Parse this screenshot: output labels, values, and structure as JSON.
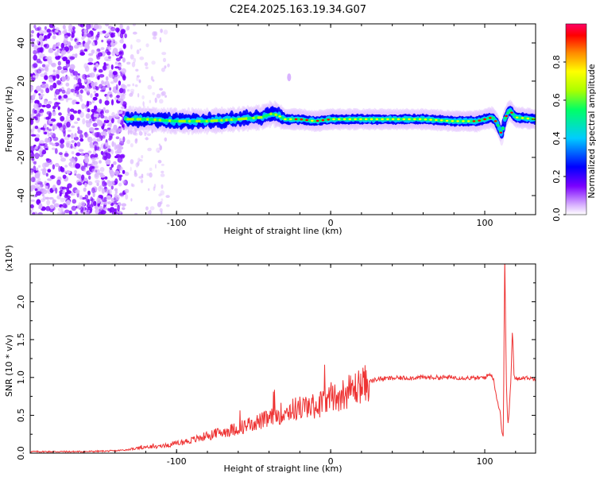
{
  "title": "C2E4.2025.163.19.34.G07",
  "chart_data": [
    {
      "type": "heatmap",
      "xlabel": "Height of straight line (km)",
      "ylabel": "Frequency (Hz)",
      "xlim": [
        -195,
        133
      ],
      "ylim": [
        -50,
        50
      ],
      "xticks": [
        -100,
        0,
        100
      ],
      "xtick_labels": [
        "-100",
        "0",
        "100"
      ],
      "yticks": [
        -40,
        -20,
        0,
        20,
        40
      ],
      "ytick_labels": [
        "-40",
        "-20",
        "0",
        "20",
        "40"
      ],
      "colorbar": {
        "label": "Normalized spectral amplitude",
        "range": [
          0,
          1
        ],
        "ticks": [
          0.0,
          0.2,
          0.4,
          0.6,
          0.8
        ],
        "tick_labels": [
          "0.0",
          "0.2",
          "0.4",
          "0.6",
          "0.8"
        ],
        "colors": [
          "#ffffff",
          "#d9b3ff",
          "#7b00ff",
          "#0000ff",
          "#00ccff",
          "#00ff66",
          "#aaff00",
          "#ffff00",
          "#ff8800",
          "#ff0000",
          "#ff0066"
        ]
      },
      "noise_region_x": [
        -195,
        -133
      ],
      "sparse_region_x": [
        -133,
        -105
      ],
      "ridge": {
        "x": [
          -133,
          -120,
          -100,
          -80,
          -60,
          -45,
          -38,
          -34,
          -30,
          -20,
          -10,
          0,
          20,
          40,
          60,
          80,
          95,
          100,
          105,
          108,
          111,
          113,
          116,
          120,
          133
        ],
        "y": [
          0,
          0,
          -1,
          -1,
          0,
          1,
          3,
          2,
          0,
          0,
          -1,
          0,
          0,
          0,
          0,
          -1,
          -1,
          0,
          1,
          -2,
          -8,
          0,
          5,
          1,
          0
        ]
      },
      "isolated_blob": {
        "x": -27,
        "y": 22
      }
    },
    {
      "type": "line",
      "xlabel": "Height of straight line (km)",
      "ylabel": "SNR (10 * v/v)",
      "y_multiplier": "(x10⁴)",
      "xlim": [
        -195,
        133
      ],
      "ylim": [
        0,
        2.5
      ],
      "xticks": [
        -100,
        0,
        100
      ],
      "xtick_labels": [
        "-100",
        "0",
        "100"
      ],
      "yticks": [
        0.0,
        0.5,
        1.0,
        1.5,
        2.0
      ],
      "ytick_labels": [
        "0.0",
        "0.5",
        "1.0",
        "1.5",
        "2.0"
      ],
      "color": "#ee3333",
      "x": [
        -195,
        -160,
        -140,
        -130,
        -120,
        -110,
        -100,
        -90,
        -80,
        -70,
        -60,
        -50,
        -40,
        -30,
        -20,
        -10,
        0,
        10,
        20,
        30,
        40,
        60,
        80,
        95,
        100,
        104,
        106,
        108,
        110,
        111,
        112,
        113,
        114,
        115,
        116,
        117,
        118,
        119,
        120,
        125,
        133
      ],
      "y": [
        0.02,
        0.02,
        0.03,
        0.05,
        0.08,
        0.09,
        0.13,
        0.17,
        0.23,
        0.28,
        0.33,
        0.4,
        0.45,
        0.55,
        0.6,
        0.62,
        0.72,
        0.8,
        0.9,
        0.98,
        0.99,
        1.0,
        1.0,
        0.99,
        1.0,
        1.05,
        0.95,
        0.7,
        0.55,
        0.3,
        0.2,
        2.6,
        0.95,
        0.35,
        0.6,
        1.0,
        1.65,
        1.0,
        0.98,
        1.0,
        0.98
      ]
    }
  ]
}
